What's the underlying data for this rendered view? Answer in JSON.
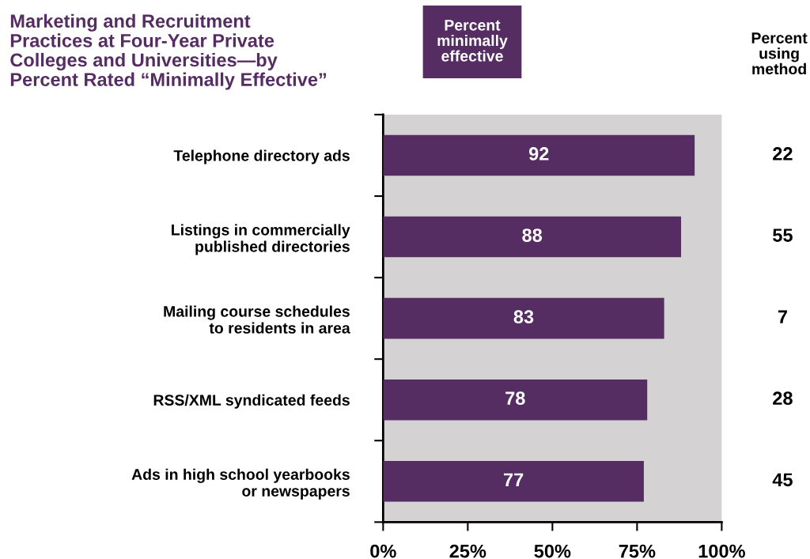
{
  "chart_data": {
    "type": "bar",
    "orientation": "horizontal",
    "title": "Marketing and Recruitment\nPractices at Four-Year Private\nColleges and Universities—by\nPercent Rated “Minimally Effective”",
    "categories": [
      "Telephone directory ads",
      "Listings in commercially\npublished directories",
      "Mailing course schedules\nto residents in area",
      "RSS/XML syndicated feeds",
      "Ads in high school yearbooks\nor newspapers"
    ],
    "series": [
      {
        "name": "Percent\nminimally\neffective",
        "color": "#552d62",
        "values": [
          92,
          88,
          83,
          78,
          77
        ]
      }
    ],
    "data_labels": true,
    "xlim": [
      0,
      100
    ],
    "xticks": [
      {
        "value": 0,
        "label": "0%"
      },
      {
        "value": 25,
        "label": "25%"
      },
      {
        "value": 50,
        "label": "50%"
      },
      {
        "value": 75,
        "label": "75%"
      },
      {
        "value": 100,
        "label": "100%"
      }
    ],
    "legend": "top",
    "annotations": [
      "Percent\nusing\nmethod",
      "22",
      "55",
      "7",
      "28",
      "45"
    ]
  }
}
